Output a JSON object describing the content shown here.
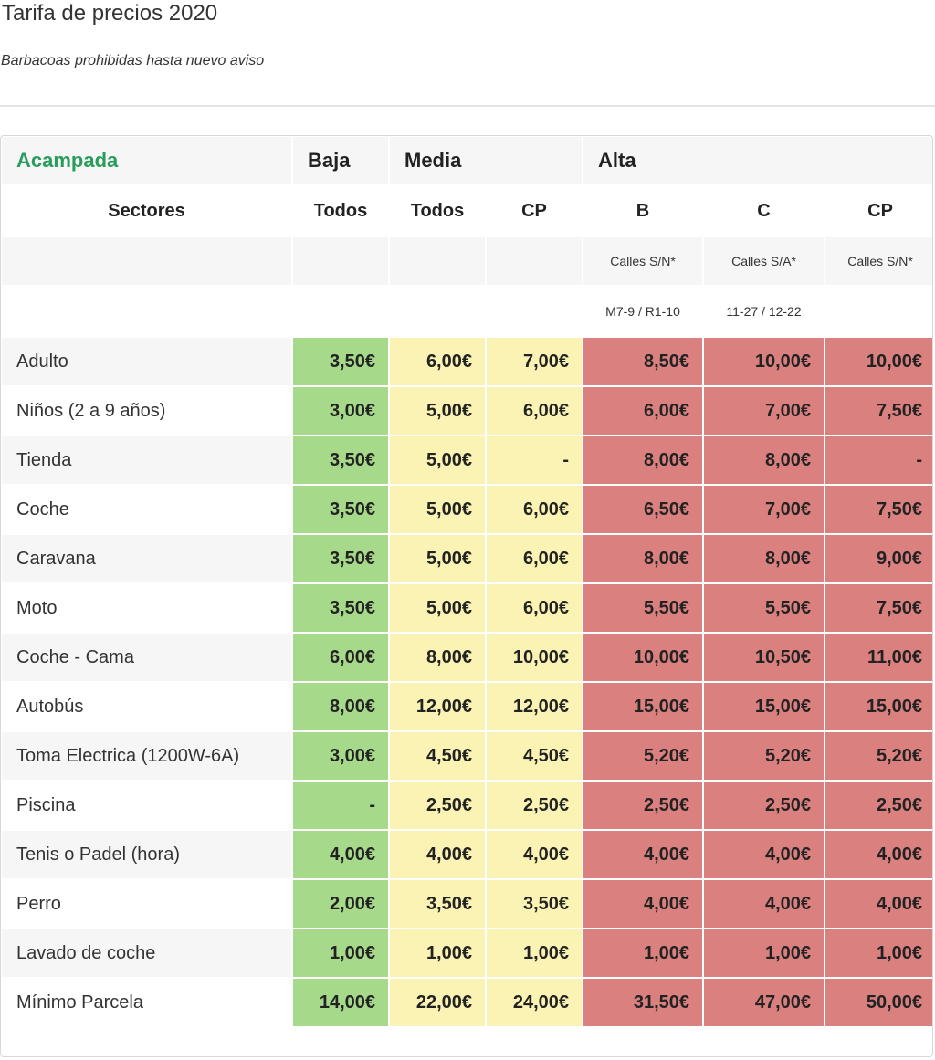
{
  "page": {
    "title": "Tarifa de precios 2020",
    "subtitle": "Barbacoas prohibidas hasta nuevo aviso"
  },
  "colors": {
    "accent_green_text": "#2a9d5c",
    "baja": "#a6d98a",
    "media": "#faf3b3",
    "alta": "#da8180"
  },
  "table": {
    "header": {
      "label": "Acampada",
      "baja": "Baja",
      "media": "Media",
      "alta": "Alta"
    },
    "sectors": {
      "label": "Sectores",
      "cols": [
        "Todos",
        "Todos",
        "CP",
        "B",
        "C",
        "CP"
      ]
    },
    "streets1": [
      "",
      "",
      "",
      "Calles S/N*",
      "Calles S/A*",
      "Calles S/N*"
    ],
    "streets2": [
      "",
      "",
      "",
      "M7-9 / R1-10",
      "11-27 / 12-22",
      ""
    ],
    "rows": [
      {
        "label": "Adulto",
        "values": [
          "3,50€",
          "6,00€",
          "7,00€",
          "8,50€",
          "10,00€",
          "10,00€"
        ]
      },
      {
        "label": "Niños (2 a 9 años)",
        "values": [
          "3,00€",
          "5,00€",
          "6,00€",
          "6,00€",
          "7,00€",
          "7,50€"
        ]
      },
      {
        "label": "Tienda",
        "values": [
          "3,50€",
          "5,00€",
          "-",
          "8,00€",
          "8,00€",
          "-"
        ]
      },
      {
        "label": "Coche",
        "values": [
          "3,50€",
          "5,00€",
          "6,00€",
          "6,50€",
          "7,00€",
          "7,50€"
        ]
      },
      {
        "label": "Caravana",
        "values": [
          "3,50€",
          "5,00€",
          "6,00€",
          "8,00€",
          "8,00€",
          "9,00€"
        ]
      },
      {
        "label": "Moto",
        "values": [
          "3,50€",
          "5,00€",
          "6,00€",
          "5,50€",
          "5,50€",
          "7,50€"
        ]
      },
      {
        "label": "Coche - Cama",
        "values": [
          "6,00€",
          "8,00€",
          "10,00€",
          "10,00€",
          "10,50€",
          "11,00€"
        ]
      },
      {
        "label": "Autobús",
        "values": [
          "8,00€",
          "12,00€",
          "12,00€",
          "15,00€",
          "15,00€",
          "15,00€"
        ]
      },
      {
        "label": "Toma Electrica (1200W-6A)",
        "values": [
          "3,00€",
          "4,50€",
          "4,50€",
          "5,20€",
          "5,20€",
          "5,20€"
        ]
      },
      {
        "label": "Piscina",
        "values": [
          "-",
          "2,50€",
          "2,50€",
          "2,50€",
          "2,50€",
          "2,50€"
        ]
      },
      {
        "label": "Tenis o Padel (hora)",
        "values": [
          "4,00€",
          "4,00€",
          "4,00€",
          "4,00€",
          "4,00€",
          "4,00€"
        ]
      },
      {
        "label": "Perro",
        "values": [
          "2,00€",
          "3,50€",
          "3,50€",
          "4,00€",
          "4,00€",
          "4,00€"
        ]
      },
      {
        "label": "Lavado de coche",
        "values": [
          "1,00€",
          "1,00€",
          "1,00€",
          "1,00€",
          "1,00€",
          "1,00€"
        ]
      },
      {
        "label": "Mínimo Parcela",
        "values": [
          "14,00€",
          "22,00€",
          "24,00€",
          "31,50€",
          "47,00€",
          "50,00€"
        ]
      }
    ]
  }
}
